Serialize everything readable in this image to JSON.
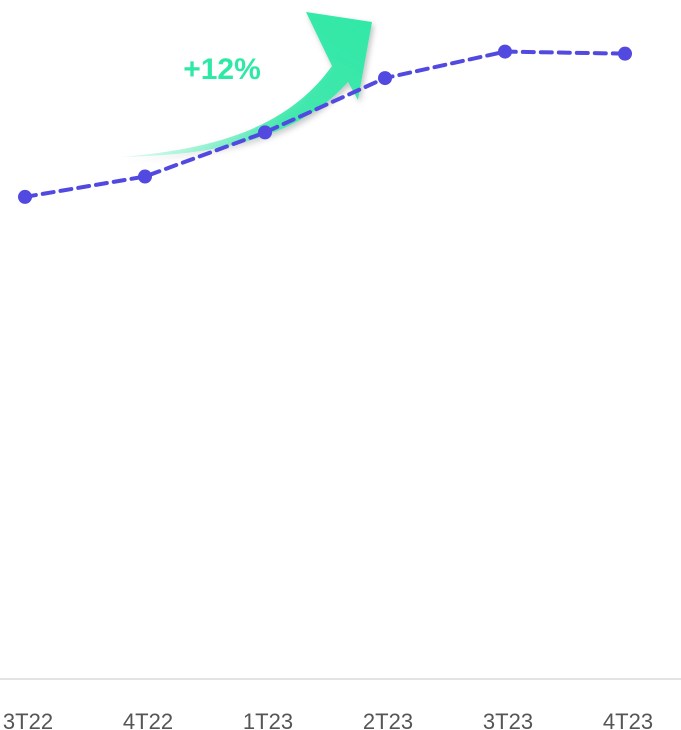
{
  "chart_data": {
    "type": "line",
    "categories": [
      "3T22",
      "4T22",
      "1T23",
      "2T23",
      "3T23",
      "4T23"
    ],
    "series": [
      {
        "values": [
          71.0,
          74.0,
          80.5,
          88.5,
          92.4,
          92.1
        ]
      }
    ],
    "ylim": [
      0,
      100
    ],
    "grid": false,
    "legend": "none",
    "line_style": "dashed",
    "colors": {
      "series": "#5149e0",
      "arrow": "#2ee8a6",
      "axis": "#e3e3e3",
      "tick": "#555555"
    },
    "annotation": {
      "text": "+12%",
      "icon": "curved-up-arrow-icon"
    }
  }
}
